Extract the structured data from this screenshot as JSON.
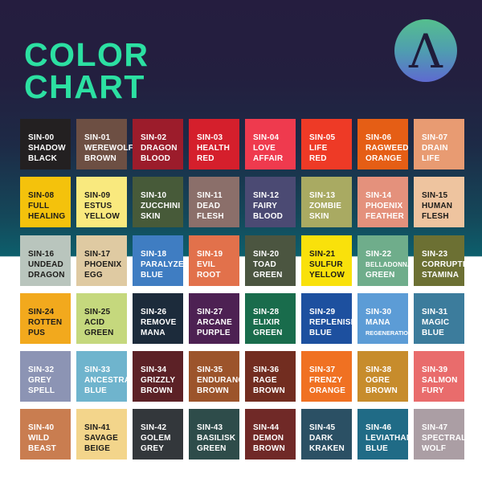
{
  "page": {
    "title_line1": "COLOR",
    "title_line2": "CHART"
  },
  "logo": {
    "name": "lambda-brand-logo",
    "glyph": "Λ",
    "gradient_top": "#55bf8e",
    "gradient_bottom": "#5e6ad0",
    "glyph_color": "#1f1c3a"
  },
  "theme": {
    "title_color": "#2ce0a2",
    "bg_top": "#251d3f",
    "bg_teal": "#0d5f6c",
    "bg_bottom": "#ffffff"
  },
  "swatches": [
    {
      "code": "SIN-00",
      "name": "SHADOW BLACK",
      "color": "#232021",
      "text": "light"
    },
    {
      "code": "SIN-01",
      "name": "WEREWOLF BROWN",
      "color": "#6d4f43",
      "text": "light"
    },
    {
      "code": "SIN-02",
      "name": "DRAGON BLOOD",
      "color": "#9c1c2b",
      "text": "light"
    },
    {
      "code": "SIN-03",
      "name": "HEALTH RED",
      "color": "#d51f2c",
      "text": "light"
    },
    {
      "code": "SIN-04",
      "name": "LOVE AFFAIR",
      "color": "#ef3a4e",
      "text": "light"
    },
    {
      "code": "SIN-05",
      "name": "LIFE RED",
      "color": "#ee3a26",
      "text": "light"
    },
    {
      "code": "SIN-06",
      "name": "RAGWEED ORANGE",
      "color": "#e55e15",
      "text": "light"
    },
    {
      "code": "SIN-07",
      "name": "DRAIN LIFE",
      "color": "#e89b72",
      "text": "light"
    },
    {
      "code": "SIN-08",
      "name": "FULL HEALING",
      "color": "#f4c20c",
      "text": "dark"
    },
    {
      "code": "SIN-09",
      "name": "ESTUS YELLOW",
      "color": "#f9e97e",
      "text": "dark"
    },
    {
      "code": "SIN-10",
      "name": "ZUCCHINI SKIN",
      "color": "#475a39",
      "text": "light"
    },
    {
      "code": "SIN-11",
      "name": "DEAD FLESH",
      "color": "#8b6f6a",
      "text": "light"
    },
    {
      "code": "SIN-12",
      "name": "FAIRY BLOOD",
      "color": "#4b4a73",
      "text": "light"
    },
    {
      "code": "SIN-13",
      "name": "ZOMBIE SKIN",
      "color": "#a9aa62",
      "text": "light"
    },
    {
      "code": "SIN-14",
      "name": "PHOENIX FEATHER",
      "color": "#e4917c",
      "text": "light"
    },
    {
      "code": "SIN-15",
      "name": "HUMAN FLESH",
      "color": "#eec49f",
      "text": "dark"
    },
    {
      "code": "SIN-16",
      "name": "UNDEAD DRAGON",
      "color": "#b9c5bd",
      "text": "dark"
    },
    {
      "code": "SIN-17",
      "name": "PHOENIX EGG",
      "color": "#dfcaa2",
      "text": "dark"
    },
    {
      "code": "SIN-18",
      "name": "PARALYZE BLUE",
      "color": "#3f7dc2",
      "text": "light"
    },
    {
      "code": "SIN-19",
      "name": "EVIL ROOT",
      "color": "#e2714b",
      "text": "light"
    },
    {
      "code": "SIN-20",
      "name": "TOAD GREEN",
      "color": "#4b5540",
      "text": "light"
    },
    {
      "code": "SIN-21",
      "name": "SULFUR YELLOW",
      "color": "#f9e10b",
      "text": "dark"
    },
    {
      "code": "SIN-22",
      "name": "BELLADONNA GREEN",
      "color": "#6fad8b",
      "text": "light"
    },
    {
      "code": "SIN-23",
      "name": "CORRUPTED STAMINA",
      "color": "#6c7033",
      "text": "light"
    },
    {
      "code": "SIN-24",
      "name": "ROTTEN PUS",
      "color": "#f2a91d",
      "text": "dark"
    },
    {
      "code": "SIN-25",
      "name": "ACID GREEN",
      "color": "#c5d87d",
      "text": "dark"
    },
    {
      "code": "SIN-26",
      "name": "REMOVE MANA",
      "color": "#1c2b3b",
      "text": "light"
    },
    {
      "code": "SIN-27",
      "name": "ARCANE PURPLE",
      "color": "#4d2153",
      "text": "light"
    },
    {
      "code": "SIN-28",
      "name": "ELIXIR GREEN",
      "color": "#196c4c",
      "text": "light"
    },
    {
      "code": "SIN-29",
      "name": "REPLENISH BLUE",
      "color": "#1d509f",
      "text": "light"
    },
    {
      "code": "SIN-30",
      "name": "MANA REGENERATION",
      "color": "#5c9cd6",
      "text": "light"
    },
    {
      "code": "SIN-31",
      "name": "MAGIC BLUE",
      "color": "#3c7c9c",
      "text": "light"
    },
    {
      "code": "SIN-32",
      "name": "GREY SPELL",
      "color": "#8c94b4",
      "text": "light"
    },
    {
      "code": "SIN-33",
      "name": "ANCESTRAL BLUE",
      "color": "#6fb4cd",
      "text": "light"
    },
    {
      "code": "SIN-34",
      "name": "GRIZZLY BROWN",
      "color": "#5c2126",
      "text": "light"
    },
    {
      "code": "SIN-35",
      "name": "ENDURANCE BROWN",
      "color": "#9c542b",
      "text": "light"
    },
    {
      "code": "SIN-36",
      "name": "RAGE BROWN",
      "color": "#722d20",
      "text": "light"
    },
    {
      "code": "SIN-37",
      "name": "FRENZY ORANGE",
      "color": "#f07122",
      "text": "light"
    },
    {
      "code": "SIN-38",
      "name": "OGRE BROWN",
      "color": "#c78c2c",
      "text": "light"
    },
    {
      "code": "SIN-39",
      "name": "SALMON FURY",
      "color": "#e96c6c",
      "text": "light"
    },
    {
      "code": "SIN-40",
      "name": "WILD BEAST",
      "color": "#c97d50",
      "text": "light"
    },
    {
      "code": "SIN-41",
      "name": "SAVAGE BEIGE",
      "color": "#f3d58b",
      "text": "dark"
    },
    {
      "code": "SIN-42",
      "name": "GOLEM GREY",
      "color": "#33373b",
      "text": "light"
    },
    {
      "code": "SIN-43",
      "name": "BASILISK GREEN",
      "color": "#2e4c4a",
      "text": "light"
    },
    {
      "code": "SIN-44",
      "name": "DEMON BROWN",
      "color": "#702927",
      "text": "light"
    },
    {
      "code": "SIN-45",
      "name": "DARK KRAKEN",
      "color": "#2b5064",
      "text": "light"
    },
    {
      "code": "SIN-46",
      "name": "LEVIATHAN BLUE",
      "color": "#206b86",
      "text": "light"
    },
    {
      "code": "SIN-47",
      "name": "SPECTRAL WOLF",
      "color": "#ab9ea4",
      "text": "light"
    }
  ]
}
